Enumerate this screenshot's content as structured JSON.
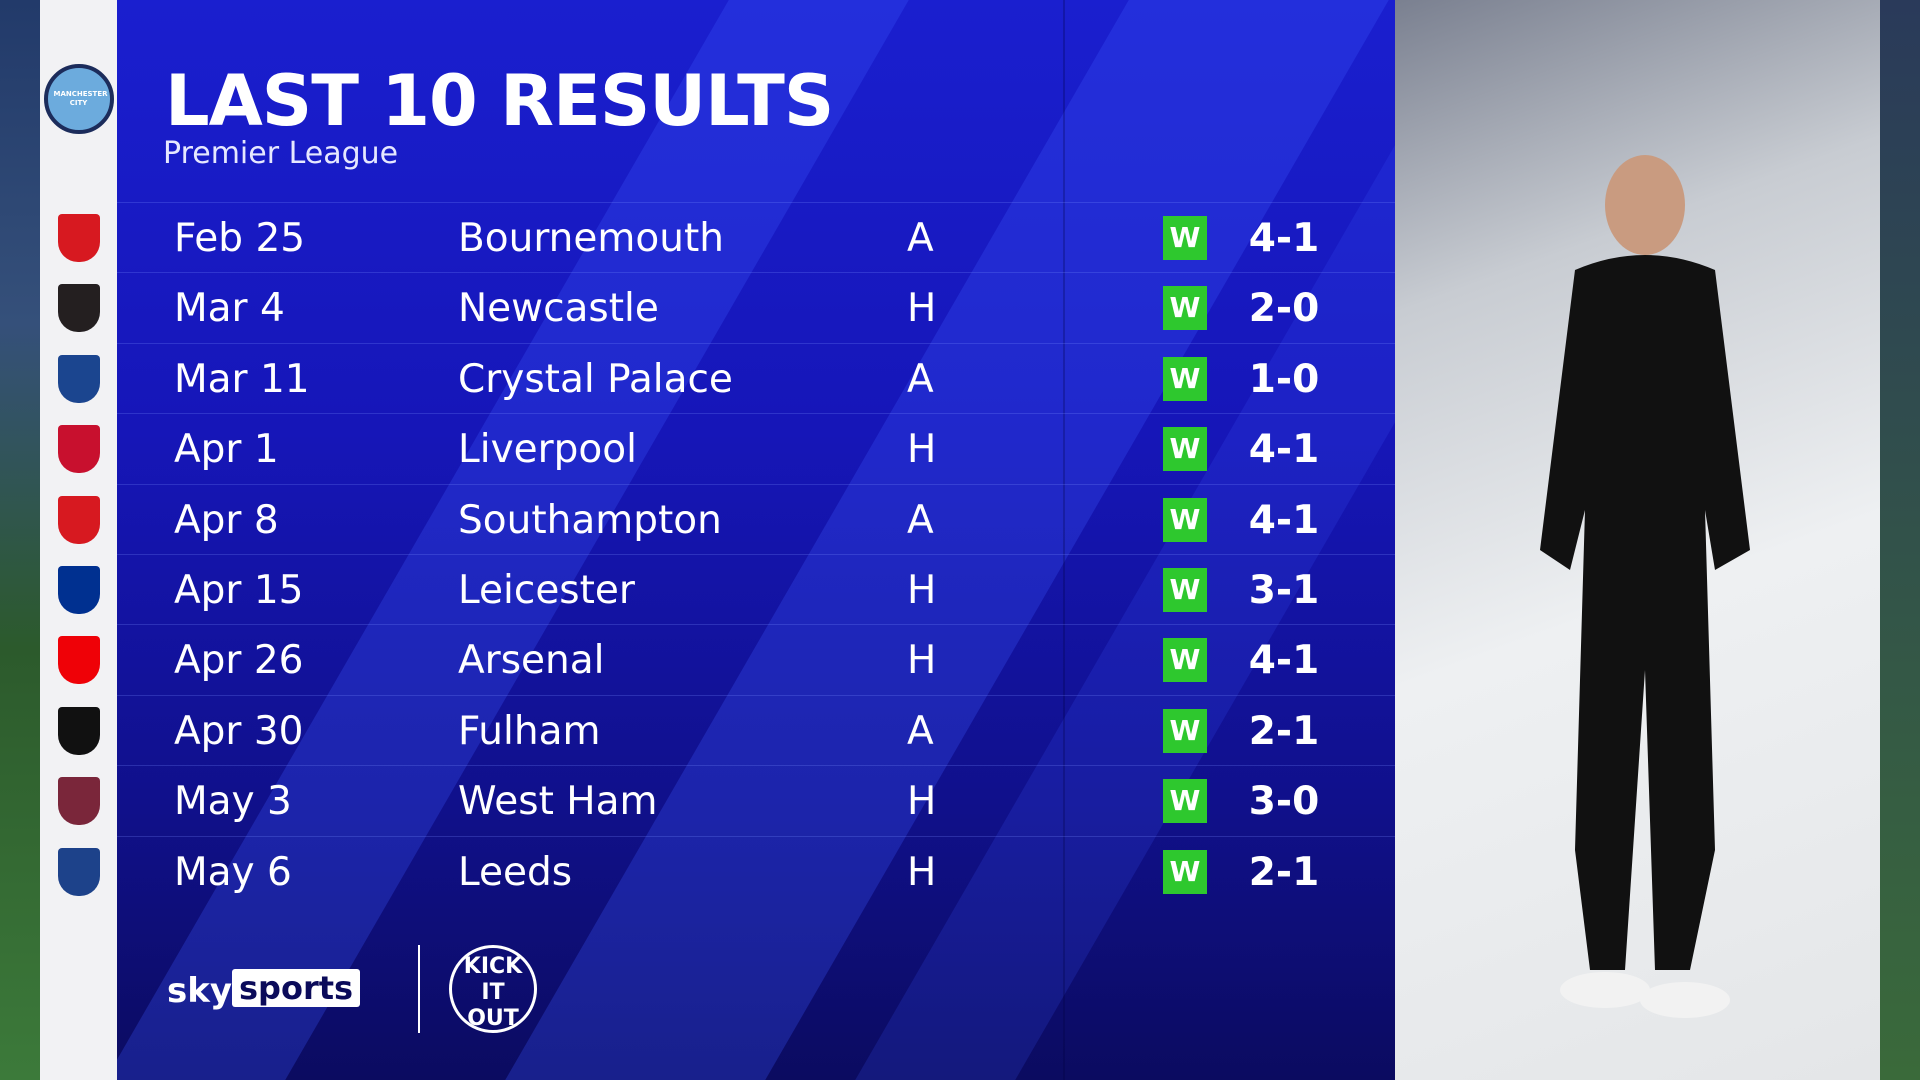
{
  "header": {
    "title": "LAST 10 RESULTS",
    "subtitle": "Premier League"
  },
  "team": {
    "name": "Manchester City",
    "crest_text": "MANCHESTER CITY"
  },
  "results": [
    {
      "date": "Feb 25",
      "opponent": "Bournemouth",
      "venue": "A",
      "result": "W",
      "score": "4-1",
      "crest_color": "#d71920"
    },
    {
      "date": "Mar 4",
      "opponent": "Newcastle",
      "venue": "H",
      "result": "W",
      "score": "2-0",
      "crest_color": "#241f20"
    },
    {
      "date": "Mar 11",
      "opponent": "Crystal Palace",
      "venue": "A",
      "result": "W",
      "score": "1-0",
      "crest_color": "#1b458f"
    },
    {
      "date": "Apr 1",
      "opponent": "Liverpool",
      "venue": "H",
      "result": "W",
      "score": "4-1",
      "crest_color": "#c8102e"
    },
    {
      "date": "Apr 8",
      "opponent": "Southampton",
      "venue": "A",
      "result": "W",
      "score": "4-1",
      "crest_color": "#d71920"
    },
    {
      "date": "Apr 15",
      "opponent": "Leicester",
      "venue": "H",
      "result": "W",
      "score": "3-1",
      "crest_color": "#003090"
    },
    {
      "date": "Apr 26",
      "opponent": "Arsenal",
      "venue": "H",
      "result": "W",
      "score": "4-1",
      "crest_color": "#ef0107"
    },
    {
      "date": "Apr 30",
      "opponent": "Fulham",
      "venue": "A",
      "result": "W",
      "score": "2-1",
      "crest_color": "#111111"
    },
    {
      "date": "May 3",
      "opponent": "West Ham",
      "venue": "H",
      "result": "W",
      "score": "3-0",
      "crest_color": "#7a263a"
    },
    {
      "date": "May 6",
      "opponent": "Leeds",
      "venue": "H",
      "result": "W",
      "score": "2-1",
      "crest_color": "#1d428a"
    }
  ],
  "colors": {
    "win": "#2ec82e",
    "panel": "#1616b8"
  },
  "footer": {
    "sky": "sky",
    "sports": "sports",
    "kick_it_out": "KICK IT OUT"
  }
}
